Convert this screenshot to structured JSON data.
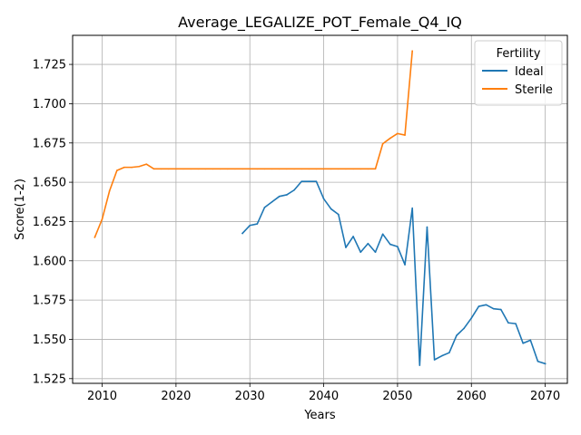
{
  "chart_data": {
    "type": "line",
    "title": "Average_LEGALIZE_POT_Female_Q4_IQ",
    "xlabel": "Years",
    "ylabel": "Score(1-2)",
    "xlim": [
      2006,
      2073
    ],
    "ylim": [
      1.522,
      1.7435
    ],
    "xticks": [
      2010,
      2020,
      2030,
      2040,
      2050,
      2060,
      2070
    ],
    "yticks": [
      1.525,
      1.55,
      1.575,
      1.6,
      1.625,
      1.65,
      1.675,
      1.7,
      1.725
    ],
    "ytick_labels": [
      "1.525",
      "1.550",
      "1.575",
      "1.600",
      "1.625",
      "1.650",
      "1.675",
      "1.700",
      "1.725"
    ],
    "grid": true,
    "legend": {
      "title": "Fertility",
      "placement": "top-right"
    },
    "series": [
      {
        "name": "Ideal",
        "color": "#1f77b4",
        "x": [
          2029,
          2030,
          2031,
          2032,
          2033,
          2034,
          2035,
          2036,
          2037,
          2038,
          2039,
          2040,
          2041,
          2042,
          2043,
          2044,
          2045,
          2046,
          2047,
          2048,
          2049,
          2050,
          2051,
          2052,
          2053,
          2054,
          2055,
          2056,
          2057,
          2058,
          2059,
          2060,
          2061,
          2062,
          2063,
          2064,
          2065,
          2066,
          2067,
          2068,
          2069,
          2070
        ],
        "y": [
          1.6175,
          1.6225,
          1.6235,
          1.634,
          1.6375,
          1.641,
          1.642,
          1.645,
          1.6505,
          1.6505,
          1.6505,
          1.6395,
          1.633,
          1.6295,
          1.6085,
          1.6155,
          1.6055,
          1.611,
          1.6055,
          1.617,
          1.6105,
          1.609,
          1.5975,
          1.6335,
          1.5335,
          1.6215,
          1.537,
          1.5395,
          1.5415,
          1.5525,
          1.557,
          1.5635,
          1.571,
          1.572,
          1.5695,
          1.569,
          1.5605,
          1.56,
          1.5475,
          1.5495,
          1.536,
          1.5345
        ]
      },
      {
        "name": "Sterile",
        "color": "#ff7f0e",
        "x": [
          2009,
          2010,
          2011,
          2012,
          2013,
          2014,
          2015,
          2016,
          2017,
          2018,
          2019,
          2020,
          2021,
          2022,
          2023,
          2024,
          2025,
          2026,
          2027,
          2028,
          2029,
          2030,
          2031,
          2032,
          2033,
          2034,
          2035,
          2036,
          2037,
          2038,
          2039,
          2040,
          2041,
          2042,
          2043,
          2044,
          2045,
          2046,
          2047,
          2048,
          2049,
          2050,
          2051,
          2052
        ],
        "y": [
          1.615,
          1.6265,
          1.6445,
          1.6575,
          1.6595,
          1.6595,
          1.66,
          1.6615,
          1.6585,
          1.6585,
          1.6585,
          1.6585,
          1.6585,
          1.6585,
          1.6585,
          1.6585,
          1.6585,
          1.6585,
          1.6585,
          1.6585,
          1.6585,
          1.6585,
          1.6585,
          1.6585,
          1.6585,
          1.6585,
          1.6585,
          1.6585,
          1.6585,
          1.6585,
          1.6585,
          1.6585,
          1.6585,
          1.6585,
          1.6585,
          1.6585,
          1.6585,
          1.6585,
          1.6585,
          1.6745,
          1.678,
          1.681,
          1.68,
          1.7335
        ]
      }
    ]
  }
}
